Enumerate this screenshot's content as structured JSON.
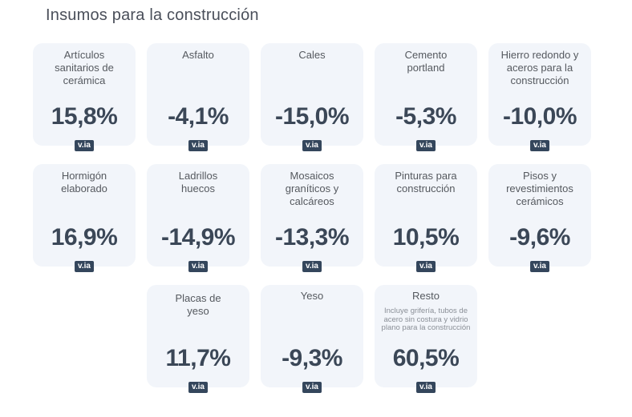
{
  "title": "Insumos para la construcción",
  "badge_label": "v.ia",
  "cards": [
    {
      "label": "Artículos sanitarios de cerámica",
      "value": "15,8%"
    },
    {
      "label": "Asfalto",
      "value": "-4,1%"
    },
    {
      "label": "Cales",
      "value": "-15,0%"
    },
    {
      "label": "Cemento portland",
      "value": "-5,3%"
    },
    {
      "label": "Hierro redondo y aceros para la construcción",
      "value": "-10,0%"
    },
    {
      "label": "Hormigón elaborado",
      "value": "16,9%"
    },
    {
      "label": "Ladrillos huecos",
      "value": "-14,9%"
    },
    {
      "label": "Mosaicos graníticos y calcáreos",
      "value": "-13,3%"
    },
    {
      "label": "Pinturas para construcción",
      "value": "10,5%"
    },
    {
      "label": "Pisos y revestimientos cerámicos",
      "value": "-9,6%"
    },
    {
      "label": "Placas de yeso",
      "value": "11,7%"
    },
    {
      "label": "Yeso",
      "value": "-9,3%"
    },
    {
      "label": "Resto",
      "note": "Incluye grifería, tubos de acero sin costura y vidrio plano para la construcción",
      "value": "60,5%"
    }
  ],
  "colors": {
    "card_bg": "#f2f5fa",
    "value": "#3b4757",
    "badge_bg": "#34465c"
  }
}
